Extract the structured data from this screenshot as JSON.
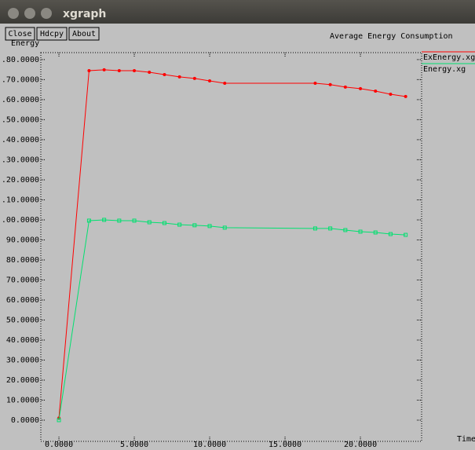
{
  "window": {
    "title": "xgraph",
    "buttons": [
      "Close",
      "Hdcpy",
      "About"
    ]
  },
  "chart_data": {
    "type": "line",
    "title": "Average Energy Consumption",
    "ylabel": "Energy",
    "xlabel": "Time",
    "x": [
      0,
      2,
      3,
      4,
      5,
      6,
      7,
      8,
      9,
      10,
      11,
      17,
      18,
      19,
      20,
      21,
      22,
      23
    ],
    "series": [
      {
        "name": "ExEnergy.xg",
        "color": "#ff0000",
        "marker": "circle",
        "values": [
          1,
          174.5,
          174.9,
          174.5,
          174.5,
          173.7,
          172.5,
          171.4,
          170.6,
          169.4,
          168.2,
          168.2,
          167.5,
          166.3,
          165.5,
          164.3,
          162.7,
          161.6
        ]
      },
      {
        "name": "Energy.xg",
        "color": "#00e070",
        "marker": "square",
        "values": [
          0,
          99.6,
          100,
          99.6,
          99.6,
          98.8,
          98.4,
          97.6,
          97.3,
          96.9,
          96.1,
          95.7,
          95.7,
          94.9,
          94.1,
          93.7,
          92.9,
          92.5
        ]
      }
    ],
    "xlim": [
      -1.2,
      24.06
    ],
    "ylim": [
      -10.6,
      183.5
    ],
    "xticks": [
      {
        "value": 0,
        "label": "0.0000"
      },
      {
        "value": 5,
        "label": "5.0000"
      },
      {
        "value": 10,
        "label": "10.0000"
      },
      {
        "value": 15,
        "label": "15.0000"
      },
      {
        "value": 20,
        "label": "20.0000"
      }
    ],
    "yticks": [
      {
        "value": 0,
        "label": "0.0000"
      },
      {
        "value": 10,
        "label": "10.0000"
      },
      {
        "value": 20,
        "label": "20.0000"
      },
      {
        "value": 30,
        "label": "30.0000"
      },
      {
        "value": 40,
        "label": "40.0000"
      },
      {
        "value": 50,
        "label": "50.0000"
      },
      {
        "value": 60,
        "label": "60.0000"
      },
      {
        "value": 70,
        "label": "70.0000"
      },
      {
        "value": 80,
        "label": "80.0000"
      },
      {
        "value": 90,
        "label": "90.0000"
      },
      {
        "value": 100,
        "label": ".00.0000"
      },
      {
        "value": 110,
        "label": ".10.0000"
      },
      {
        "value": 120,
        "label": ".20.0000"
      },
      {
        "value": 130,
        "label": ".30.0000"
      },
      {
        "value": 140,
        "label": ".40.0000"
      },
      {
        "value": 150,
        "label": ".50.0000"
      },
      {
        "value": 160,
        "label": ".60.0000"
      },
      {
        "value": 170,
        "label": ".70.0000"
      },
      {
        "value": 180,
        "label": ".80.0000"
      }
    ],
    "legend": "right"
  }
}
